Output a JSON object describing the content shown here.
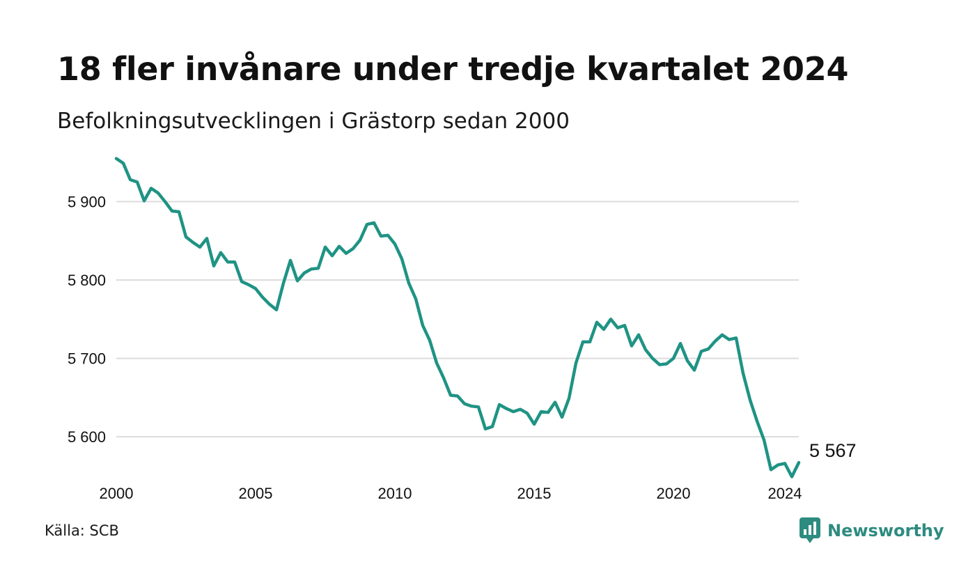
{
  "header": {
    "title": "18 fler invånare under tredje kvartalet 2024",
    "subtitle": "Befolkningsutvecklingen i Grästorp sedan 2000"
  },
  "footer": {
    "source": "Källa: SCB",
    "brand_name": "Newsworthy",
    "brand_icon": "bar-chart-speech-bubble-icon"
  },
  "colors": {
    "line": "#1f9384",
    "grid": "#dcdcdc",
    "brand": "#2e8b80"
  },
  "chart_data": {
    "type": "line",
    "title": "18 fler invånare under tredje kvartalet 2024",
    "subtitle": "Befolkningsutvecklingen i Grästorp sedan 2000",
    "xlabel": "",
    "ylabel": "",
    "xlim": [
      2000,
      2024.5
    ],
    "ylim": [
      5545,
      5960
    ],
    "grid": true,
    "legend": "none",
    "x_ticks": [
      {
        "value": 2000,
        "label": "2000"
      },
      {
        "value": 2005,
        "label": "2005"
      },
      {
        "value": 2010,
        "label": "2010"
      },
      {
        "value": 2015,
        "label": "2015"
      },
      {
        "value": 2020,
        "label": "2020"
      },
      {
        "value": 2024,
        "label": "2024"
      }
    ],
    "y_ticks": [
      {
        "value": 5600,
        "label": "5 600"
      },
      {
        "value": 5700,
        "label": "5 700"
      },
      {
        "value": 5800,
        "label": "5 800"
      },
      {
        "value": 5900,
        "label": "5 900"
      }
    ],
    "end_label": "5 567",
    "series": [
      {
        "values": [
          5955,
          5949,
          5928,
          5925,
          5901,
          5917,
          5911,
          5900,
          5888,
          5887,
          5855,
          5848,
          5842,
          5853,
          5818,
          5835,
          5823,
          5823,
          5798,
          5794,
          5789,
          5778,
          5769,
          5762,
          5796,
          5825,
          5799,
          5809,
          5814,
          5815,
          5842,
          5831,
          5843,
          5834,
          5840,
          5851,
          5871,
          5873,
          5856,
          5857,
          5846,
          5827,
          5796,
          5776,
          5742,
          5723,
          5694,
          5675,
          5653,
          5652,
          5642,
          5639,
          5638,
          5610,
          5613,
          5641,
          5636,
          5632,
          5635,
          5630,
          5616,
          5632,
          5631,
          5644,
          5625,
          5649,
          5694,
          5721,
          5721,
          5746,
          5737,
          5750,
          5739,
          5742,
          5716,
          5730,
          5711,
          5700,
          5692,
          5693,
          5700,
          5719,
          5697,
          5685,
          5709,
          5712,
          5722,
          5730,
          5724,
          5726,
          5681,
          5647,
          5620,
          5596,
          5558,
          5564,
          5566,
          5549,
          5567
        ]
      }
    ]
  }
}
